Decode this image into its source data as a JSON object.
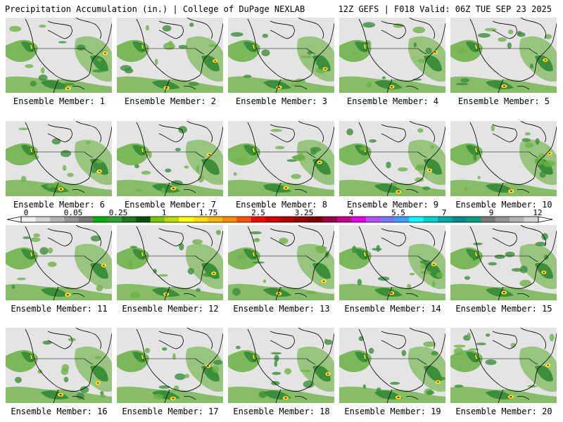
{
  "header": {
    "left": "Precipitation Accumulation (in.) | College of DuPage NEXLAB",
    "right": "12Z GEFS | F018 Valid: 06Z TUE SEP 23 2025"
  },
  "members": [
    "Ensemble Member: 1",
    "Ensemble Member: 2",
    "Ensemble Member: 3",
    "Ensemble Member: 4",
    "Ensemble Member: 5",
    "Ensemble Member: 6",
    "Ensemble Member: 7",
    "Ensemble Member: 8",
    "Ensemble Member: 9",
    "Ensemble Member: 10",
    "Ensemble Member: 11",
    "Ensemble Member: 12",
    "Ensemble Member: 13",
    "Ensemble Member: 14",
    "Ensemble Member: 15",
    "Ensemble Member: 16",
    "Ensemble Member: 17",
    "Ensemble Member: 18",
    "Ensemble Member: 19",
    "Ensemble Member: 20"
  ],
  "colorbar": {
    "labels": [
      "0",
      "0.05",
      "0.25",
      "1",
      "1.75",
      "2.5",
      "3.25",
      "4",
      "5.5",
      "7",
      "9",
      "12"
    ],
    "colors": [
      "#f0f0f0",
      "#d2d2d2",
      "#b4b4b4",
      "#969696",
      "#7a7a7a",
      "#00b000",
      "#32a032",
      "#1e781e",
      "#0a500a",
      "#7ac800",
      "#bcdc00",
      "#ffff00",
      "#ffdc00",
      "#ffb400",
      "#ff8c00",
      "#ff5000",
      "#ff0000",
      "#d20000",
      "#b40000",
      "#960000",
      "#780000",
      "#960046",
      "#c8008c",
      "#e600e6",
      "#b450ff",
      "#7878ff",
      "#3ca0ff",
      "#00ffff",
      "#00d2d2",
      "#00aaaa",
      "#008c8c",
      "#00a080",
      "#7a7a7a",
      "#969696",
      "#b4b4b4",
      "#d2d2d2"
    ]
  },
  "map_colors": {
    "background": "#e4e4e4",
    "light_green": "#6fb24a",
    "mid_green": "#3b8f3b",
    "dark_green": "#1f6e22",
    "yellow": "#ffff00",
    "red": "#dd0000",
    "coastline": "#000000"
  }
}
